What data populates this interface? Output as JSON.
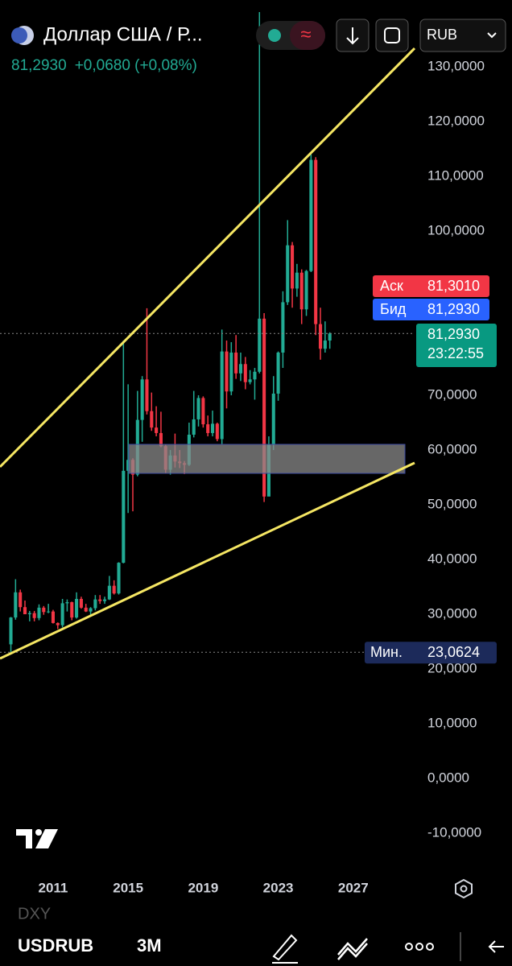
{
  "header": {
    "title": "Доллар США / Р...",
    "price": "81,2930",
    "change": "+0,0680 (+0,08%)",
    "currency": "RUB"
  },
  "quote": {
    "ask_label": "Аск",
    "ask": "81,3010",
    "bid_label": "Бид",
    "bid": "81,2930",
    "last": "81,2930",
    "timer": "23:22:55"
  },
  "chart_data": {
    "type": "candlestick",
    "x": [
      2008.75,
      2009.0,
      2009.25,
      2009.5,
      2009.75,
      2010.0,
      2010.25,
      2010.5,
      2010.75,
      2011.0,
      2011.25,
      2011.5,
      2011.75,
      2012.0,
      2012.25,
      2012.5,
      2012.75,
      2013.0,
      2013.25,
      2013.5,
      2013.75,
      2014.0,
      2014.25,
      2014.5,
      2014.75,
      2015.0,
      2015.25,
      2015.5,
      2015.75,
      2016.0,
      2016.25,
      2016.5,
      2016.75,
      2017.0,
      2017.25,
      2017.5,
      2017.75,
      2018.0,
      2018.25,
      2018.5,
      2018.75,
      2019.0,
      2019.25,
      2019.5,
      2019.75,
      2020.0,
      2020.25,
      2020.5,
      2020.75,
      2021.0,
      2021.25,
      2021.5,
      2021.75,
      2022.0,
      2022.25,
      2022.5,
      2022.75,
      2023.0,
      2023.25,
      2023.5,
      2023.75,
      2024.0,
      2024.25,
      2024.5,
      2024.75,
      2025.0,
      2025.25,
      2025.5,
      2025.75
    ],
    "open": [
      24.5,
      29.4,
      34,
      31.3,
      30,
      30.2,
      29.3,
      31.2,
      30.4,
      30.5,
      28.4,
      28,
      32,
      32.2,
      29.4,
      32.8,
      31.2,
      30.5,
      31.1,
      32.7,
      32.4,
      32.7,
      35.2,
      33.8,
      39.4,
      56.2,
      58.2,
      55.5,
      65.5,
      72.9,
      67.1,
      64.1,
      63.1,
      60.7,
      56.4,
      59,
      57.9,
      57.6,
      57.3,
      62.8,
      65.6,
      69.5,
      64.7,
      63.1,
      64.8,
      62,
      78,
      70.7,
      77.8,
      74,
      75.7,
      72.4,
      72.9,
      74.3,
      84,
      51.5,
      61,
      70.3,
      77.8,
      87,
      97.4,
      89.5,
      92.4,
      85.7,
      92.7,
      113,
      83,
      78.5,
      80
    ],
    "high": [
      29.5,
      36.4,
      34.5,
      32.5,
      30.6,
      30.6,
      31.8,
      31.5,
      31.9,
      30.8,
      28.5,
      32.8,
      32.7,
      32.3,
      34,
      33.2,
      31.9,
      31.3,
      33.5,
      33.5,
      33.2,
      37,
      36.2,
      39.5,
      80,
      72,
      58.5,
      70.8,
      73.5,
      85.9,
      70.5,
      68,
      67,
      61,
      60,
      63,
      60,
      58,
      65,
      70.8,
      70,
      69.8,
      66.3,
      67.2,
      65,
      82,
      80,
      79.7,
      81,
      77.8,
      77,
      74.6,
      75,
      140,
      85,
      62.5,
      73.5,
      78,
      89,
      102,
      98,
      94,
      93,
      92.9,
      114,
      113.5,
      86,
      83.5,
      81.5
    ],
    "low": [
      23.0624,
      29,
      30.5,
      30,
      28.7,
      28.7,
      28.9,
      29.9,
      30.2,
      28.3,
      27.3,
      27.6,
      30.5,
      28.9,
      29.2,
      31,
      30.4,
      29.9,
      30.7,
      31.9,
      31.9,
      32.6,
      33.6,
      33.6,
      39.3,
      48.5,
      48.8,
      55.2,
      61.5,
      66.5,
      63.5,
      62.5,
      60.5,
      55.8,
      55.5,
      56.8,
      56.7,
      55.6,
      57.1,
      62.3,
      64.3,
      64.1,
      62.5,
      62.5,
      61.6,
      61,
      67.6,
      70,
      73,
      72.6,
      71.1,
      72,
      69.2,
      74,
      50.5,
      52,
      60,
      69,
      75,
      86.5,
      86,
      88,
      83,
      84.5,
      92.5,
      81,
      76.5,
      77.8,
      78.5
    ],
    "close": [
      29.4,
      34,
      31.3,
      30,
      30.2,
      29.3,
      31.2,
      30.4,
      30.5,
      28.4,
      28,
      32,
      32.2,
      29.4,
      32.8,
      31.2,
      30.5,
      31.1,
      32.7,
      32.4,
      32.7,
      35.2,
      33.8,
      39.4,
      56.2,
      58.2,
      55.5,
      65.5,
      72.9,
      67.1,
      64.1,
      63.1,
      60.7,
      56.4,
      59,
      57.9,
      57.6,
      57.3,
      62.8,
      65.6,
      69.5,
      64.7,
      63.1,
      64.8,
      62,
      78,
      70.7,
      77.8,
      74,
      75.7,
      72.4,
      72.9,
      74.3,
      84,
      51.5,
      61,
      70.3,
      77.8,
      87,
      97.4,
      89.5,
      92.4,
      85.7,
      92.7,
      113,
      83,
      78.5,
      80,
      81.293
    ],
    "up_color": "#22ab94",
    "down_color": "#f23645",
    "xlim": [
      2008.17,
      2030.27
    ],
    "ylim": [
      -15.88,
      142.21
    ],
    "xticks": [
      2011,
      2015,
      2019,
      2023,
      2027
    ],
    "yticks": [
      {
        "value": 130,
        "label": "130,0000"
      },
      {
        "value": 120,
        "label": "120,0000"
      },
      {
        "value": 110,
        "label": "110,0000"
      },
      {
        "value": 100,
        "label": "100,0000"
      },
      {
        "value": 70,
        "label": "70,0000"
      },
      {
        "value": 60,
        "label": "60,0000"
      },
      {
        "value": 50,
        "label": "50,0000"
      },
      {
        "value": 40,
        "label": "40,0000"
      },
      {
        "value": 30,
        "label": "30,0000"
      },
      {
        "value": 20,
        "label": "20,0000"
      },
      {
        "value": 10,
        "label": "10,0000"
      },
      {
        "value": 0,
        "label": "0,0000"
      },
      {
        "value": -10,
        "label": "-10,0000"
      }
    ],
    "min": {
      "value": 23.0624,
      "label": "23,0624"
    },
    "min_label": "Мин."
  },
  "footer": {
    "watermark": "DXY",
    "symbol": "USDRUB",
    "interval": "3M"
  }
}
